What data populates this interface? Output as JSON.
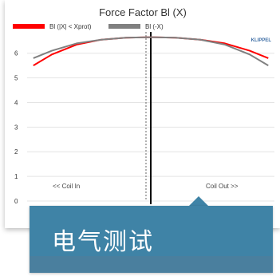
{
  "chart_data": {
    "type": "line",
    "title": "Force Factor Bl (X)",
    "xlabel": "",
    "ylabel": "",
    "ylim": [
      0,
      6.8
    ],
    "xlim": [
      -1,
      1
    ],
    "y_ticks": [
      0,
      1,
      2,
      3,
      4,
      5,
      6
    ],
    "grid": true,
    "legend": "top",
    "series": [
      {
        "name": "Bl (|X| < Xprot)",
        "color": "#ff0000",
        "x": [
          -0.95,
          -0.8,
          -0.6,
          -0.4,
          -0.2,
          0,
          0.2,
          0.4,
          0.6,
          0.8,
          0.95
        ],
        "y": [
          5.5,
          5.95,
          6.35,
          6.55,
          6.63,
          6.65,
          6.63,
          6.55,
          6.4,
          6.1,
          5.8
        ]
      },
      {
        "name": "Bl (-X)",
        "color": "#808080",
        "x": [
          -0.95,
          -0.8,
          -0.6,
          -0.4,
          -0.2,
          0,
          0.2,
          0.4,
          0.6,
          0.8,
          0.95
        ],
        "y": [
          5.8,
          6.1,
          6.4,
          6.55,
          6.63,
          6.65,
          6.63,
          6.55,
          6.35,
          5.95,
          5.5
        ]
      }
    ],
    "annotations": {
      "left": "<< Coil In",
      "right": "Coil Out >>",
      "logo": "KLIPPEL"
    }
  },
  "caption": {
    "text": "电气测试"
  }
}
